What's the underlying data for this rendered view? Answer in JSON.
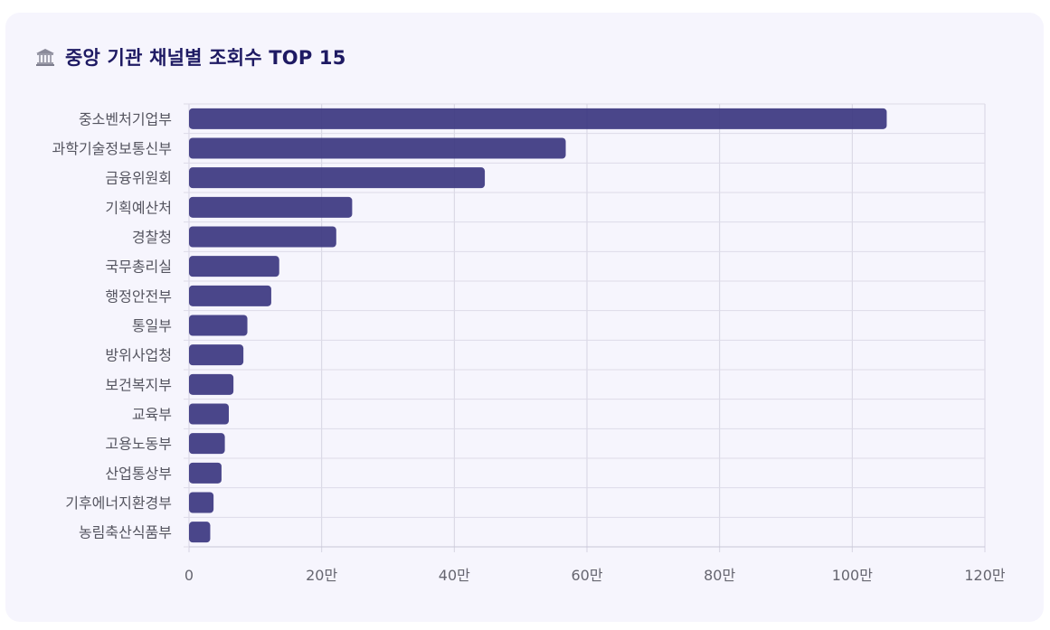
{
  "header": {
    "title": "중앙 기관 채널별 조회수 TOP 15",
    "icon": "classical-building-icon"
  },
  "chart_data": {
    "type": "bar",
    "orientation": "horizontal",
    "title": "중앙 기관 채널별 조회수 TOP 15",
    "xlabel": "",
    "ylabel": "",
    "xlim": [
      0,
      1200000
    ],
    "xticks": [
      0,
      200000,
      400000,
      600000,
      800000,
      1000000,
      1200000
    ],
    "xtick_labels": [
      "0",
      "20만",
      "40만",
      "60만",
      "80만",
      "100만",
      "120만"
    ],
    "grid": true,
    "bar_color": "#3b3680",
    "categories": [
      "중소벤처기업부",
      "과학기술정보통신부",
      "금융위원회",
      "기획예산처",
      "경찰청",
      "국무총리실",
      "행정안전부",
      "통일부",
      "방위사업청",
      "보건복지부",
      "교육부",
      "고용노동부",
      "산업통상부",
      "기후에너지환경부",
      "농림축산식품부"
    ],
    "values": [
      1052000,
      568000,
      446000,
      246000,
      222000,
      136000,
      124000,
      88000,
      82000,
      67000,
      60000,
      54000,
      49000,
      37000,
      32000
    ]
  }
}
